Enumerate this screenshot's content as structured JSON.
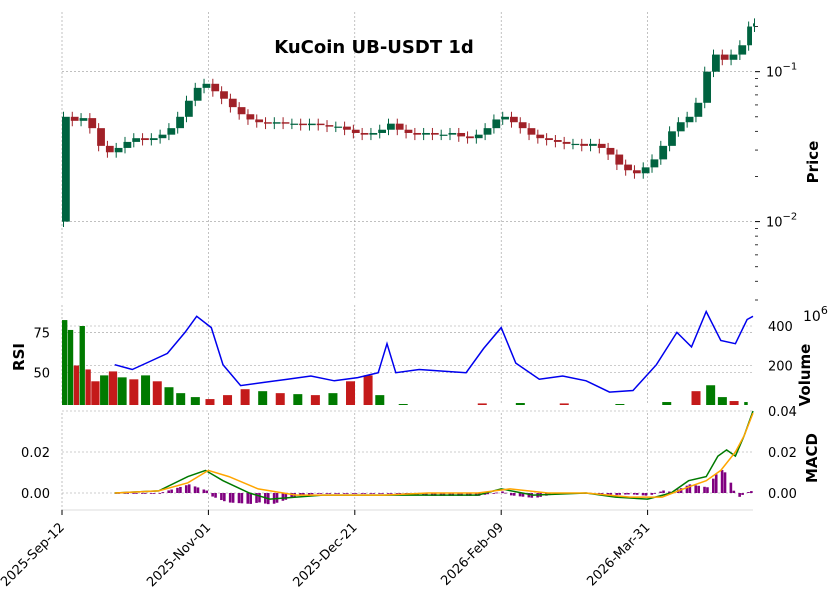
{
  "chart_data": {
    "type": "candlestick",
    "title": "KuCoin UB-USDT 1d",
    "x_tick_labels": [
      "2025-Sep-12",
      "2025-Nov-01",
      "2025-Dec-21",
      "2026-Feb-09",
      "2026-Mar-31"
    ],
    "price_panel": {
      "ylabel": "Price",
      "scale": "log",
      "ylim": [
        0.003,
        0.25
      ],
      "y_tick_labels": [
        "10^-2",
        "10^-1"
      ],
      "y_tick_values": [
        0.01,
        0.1
      ],
      "up_color": "#006340",
      "down_color": "#a02128",
      "close_series": [
        {
          "date": "2025-09-12",
          "close": 0.05
        },
        {
          "date": "2025-09-15",
          "close": 0.047
        },
        {
          "date": "2025-09-18",
          "close": 0.049
        },
        {
          "date": "2025-09-21",
          "close": 0.042
        },
        {
          "date": "2025-09-24",
          "close": 0.032
        },
        {
          "date": "2025-09-27",
          "close": 0.029
        },
        {
          "date": "2025-09-30",
          "close": 0.031
        },
        {
          "date": "2025-10-03",
          "close": 0.034
        },
        {
          "date": "2025-10-06",
          "close": 0.036
        },
        {
          "date": "2025-10-09",
          "close": 0.035
        },
        {
          "date": "2025-10-12",
          "close": 0.036
        },
        {
          "date": "2025-10-15",
          "close": 0.038
        },
        {
          "date": "2025-10-18",
          "close": 0.042
        },
        {
          "date": "2025-10-21",
          "close": 0.05
        },
        {
          "date": "2025-10-24",
          "close": 0.064
        },
        {
          "date": "2025-10-27",
          "close": 0.078
        },
        {
          "date": "2025-10-30",
          "close": 0.083
        },
        {
          "date": "2025-11-02",
          "close": 0.074
        },
        {
          "date": "2025-11-05",
          "close": 0.066
        },
        {
          "date": "2025-11-08",
          "close": 0.058
        },
        {
          "date": "2025-11-11",
          "close": 0.052
        },
        {
          "date": "2025-11-14",
          "close": 0.048
        },
        {
          "date": "2025-11-17",
          "close": 0.046
        },
        {
          "date": "2025-11-20",
          "close": 0.045
        },
        {
          "date": "2025-11-23",
          "close": 0.046
        },
        {
          "date": "2025-11-26",
          "close": 0.045
        },
        {
          "date": "2025-11-29",
          "close": 0.045
        },
        {
          "date": "2025-12-02",
          "close": 0.044
        },
        {
          "date": "2025-12-05",
          "close": 0.045
        },
        {
          "date": "2025-12-08",
          "close": 0.044
        },
        {
          "date": "2025-12-11",
          "close": 0.043
        },
        {
          "date": "2025-12-14",
          "close": 0.043
        },
        {
          "date": "2025-12-17",
          "close": 0.041
        },
        {
          "date": "2025-12-20",
          "close": 0.039
        },
        {
          "date": "2025-12-23",
          "close": 0.038
        },
        {
          "date": "2025-12-26",
          "close": 0.039
        },
        {
          "date": "2025-12-29",
          "close": 0.041
        },
        {
          "date": "2026-01-01",
          "close": 0.045
        },
        {
          "date": "2026-01-04",
          "close": 0.041
        },
        {
          "date": "2026-01-07",
          "close": 0.039
        },
        {
          "date": "2026-01-10",
          "close": 0.038
        },
        {
          "date": "2026-01-13",
          "close": 0.039
        },
        {
          "date": "2026-01-16",
          "close": 0.038
        },
        {
          "date": "2026-01-19",
          "close": 0.038
        },
        {
          "date": "2026-01-22",
          "close": 0.039
        },
        {
          "date": "2026-01-25",
          "close": 0.037
        },
        {
          "date": "2026-01-28",
          "close": 0.036
        },
        {
          "date": "2026-01-31",
          "close": 0.038
        },
        {
          "date": "2026-02-03",
          "close": 0.042
        },
        {
          "date": "2026-02-06",
          "close": 0.048
        },
        {
          "date": "2026-02-09",
          "close": 0.05
        },
        {
          "date": "2026-02-12",
          "close": 0.046
        },
        {
          "date": "2026-02-15",
          "close": 0.042
        },
        {
          "date": "2026-02-18",
          "close": 0.038
        },
        {
          "date": "2026-02-21",
          "close": 0.036
        },
        {
          "date": "2026-02-24",
          "close": 0.035
        },
        {
          "date": "2026-02-27",
          "close": 0.034
        },
        {
          "date": "2026-03-02",
          "close": 0.033
        },
        {
          "date": "2026-03-05",
          "close": 0.033
        },
        {
          "date": "2026-03-08",
          "close": 0.032
        },
        {
          "date": "2026-03-11",
          "close": 0.033
        },
        {
          "date": "2026-03-14",
          "close": 0.031
        },
        {
          "date": "2026-03-17",
          "close": 0.028
        },
        {
          "date": "2026-03-20",
          "close": 0.024
        },
        {
          "date": "2026-03-23",
          "close": 0.022
        },
        {
          "date": "2026-03-26",
          "close": 0.021
        },
        {
          "date": "2026-03-29",
          "close": 0.023
        },
        {
          "date": "2026-04-01",
          "close": 0.026
        },
        {
          "date": "2026-04-04",
          "close": 0.032
        },
        {
          "date": "2026-04-07",
          "close": 0.04
        },
        {
          "date": "2026-04-10",
          "close": 0.046
        },
        {
          "date": "2026-04-13",
          "close": 0.05
        },
        {
          "date": "2026-04-16",
          "close": 0.062
        },
        {
          "date": "2026-04-19",
          "close": 0.1
        },
        {
          "date": "2026-04-22",
          "close": 0.13
        },
        {
          "date": "2026-04-25",
          "close": 0.12
        },
        {
          "date": "2026-04-28",
          "close": 0.13
        },
        {
          "date": "2026-05-01",
          "close": 0.15
        },
        {
          "date": "2026-05-04",
          "close": 0.2
        },
        {
          "date": "2026-05-06",
          "close": 0.21
        }
      ]
    },
    "rsi_panel": {
      "ylabel": "RSI",
      "y_tick_labels": [
        "50",
        "75"
      ],
      "y_tick_values": [
        50,
        75
      ],
      "line_color": "#0000ee",
      "rsi_series": [
        {
          "date": "2025-09-30",
          "rsi": 55
        },
        {
          "date": "2025-10-06",
          "rsi": 52
        },
        {
          "date": "2025-10-12",
          "rsi": 57
        },
        {
          "date": "2025-10-18",
          "rsi": 62
        },
        {
          "date": "2025-10-24",
          "rsi": 75
        },
        {
          "date": "2025-10-28",
          "rsi": 85
        },
        {
          "date": "2025-11-02",
          "rsi": 78
        },
        {
          "date": "2025-11-06",
          "rsi": 55
        },
        {
          "date": "2025-11-12",
          "rsi": 42
        },
        {
          "date": "2025-11-20",
          "rsi": 44
        },
        {
          "date": "2025-11-28",
          "rsi": 46
        },
        {
          "date": "2025-12-06",
          "rsi": 48
        },
        {
          "date": "2025-12-14",
          "rsi": 45
        },
        {
          "date": "2025-12-22",
          "rsi": 47
        },
        {
          "date": "2025-12-29",
          "rsi": 50
        },
        {
          "date": "2026-01-01",
          "rsi": 68
        },
        {
          "date": "2026-01-04",
          "rsi": 50
        },
        {
          "date": "2026-01-12",
          "rsi": 52
        },
        {
          "date": "2026-01-20",
          "rsi": 51
        },
        {
          "date": "2026-01-28",
          "rsi": 50
        },
        {
          "date": "2026-02-03",
          "rsi": 65
        },
        {
          "date": "2026-02-09",
          "rsi": 78
        },
        {
          "date": "2026-02-14",
          "rsi": 56
        },
        {
          "date": "2026-02-22",
          "rsi": 46
        },
        {
          "date": "2026-03-02",
          "rsi": 48
        },
        {
          "date": "2026-03-10",
          "rsi": 45
        },
        {
          "date": "2026-03-18",
          "rsi": 38
        },
        {
          "date": "2026-03-26",
          "rsi": 39
        },
        {
          "date": "2026-04-03",
          "rsi": 55
        },
        {
          "date": "2026-04-10",
          "rsi": 75
        },
        {
          "date": "2026-04-15",
          "rsi": 66
        },
        {
          "date": "2026-04-20",
          "rsi": 88
        },
        {
          "date": "2026-04-25",
          "rsi": 70
        },
        {
          "date": "2026-04-30",
          "rsi": 68
        },
        {
          "date": "2026-05-04",
          "rsi": 83
        },
        {
          "date": "2026-05-06",
          "rsi": 85
        }
      ]
    },
    "volume_panel": {
      "ylabel": "Volume",
      "scale_label": "10^6",
      "y_tick_labels": [
        "200",
        "400"
      ],
      "y_tick_values": [
        200,
        400
      ],
      "up_color": "#007a00",
      "down_color": "#c41a1a",
      "volume_series": [
        {
          "date": "2025-09-12",
          "volume": 430,
          "up": true
        },
        {
          "date": "2025-09-14",
          "volume": 380,
          "up": true
        },
        {
          "date": "2025-09-16",
          "volume": 200,
          "up": false
        },
        {
          "date": "2025-09-18",
          "volume": 400,
          "up": true
        },
        {
          "date": "2025-09-20",
          "volume": 180,
          "up": false
        },
        {
          "date": "2025-09-22",
          "volume": 120,
          "up": false
        },
        {
          "date": "2025-09-25",
          "volume": 150,
          "up": true
        },
        {
          "date": "2025-09-28",
          "volume": 170,
          "up": false
        },
        {
          "date": "2025-10-01",
          "volume": 140,
          "up": true
        },
        {
          "date": "2025-10-05",
          "volume": 130,
          "up": false
        },
        {
          "date": "2025-10-09",
          "volume": 150,
          "up": true
        },
        {
          "date": "2025-10-13",
          "volume": 120,
          "up": false
        },
        {
          "date": "2025-10-17",
          "volume": 90,
          "up": true
        },
        {
          "date": "2025-10-21",
          "volume": 60,
          "up": true
        },
        {
          "date": "2025-10-26",
          "volume": 40,
          "up": true
        },
        {
          "date": "2025-10-31",
          "volume": 30,
          "up": false
        },
        {
          "date": "2025-11-06",
          "volume": 50,
          "up": false
        },
        {
          "date": "2025-11-12",
          "volume": 80,
          "up": false
        },
        {
          "date": "2025-11-18",
          "volume": 70,
          "up": true
        },
        {
          "date": "2025-11-24",
          "volume": 60,
          "up": false
        },
        {
          "date": "2025-11-30",
          "volume": 55,
          "up": true
        },
        {
          "date": "2025-12-06",
          "volume": 50,
          "up": false
        },
        {
          "date": "2025-12-12",
          "volume": 60,
          "up": true
        },
        {
          "date": "2025-12-18",
          "volume": 120,
          "up": false
        },
        {
          "date": "2025-12-24",
          "volume": 150,
          "up": false
        },
        {
          "date": "2025-12-28",
          "volume": 50,
          "up": true
        },
        {
          "date": "2026-01-05",
          "volume": 5,
          "up": true
        },
        {
          "date": "2026-02-01",
          "volume": 8,
          "up": false
        },
        {
          "date": "2026-02-14",
          "volume": 10,
          "up": true
        },
        {
          "date": "2026-03-01",
          "volume": 8,
          "up": false
        },
        {
          "date": "2026-03-20",
          "volume": 5,
          "up": true
        },
        {
          "date": "2026-04-05",
          "volume": 15,
          "up": true
        },
        {
          "date": "2026-04-15",
          "volume": 70,
          "up": false
        },
        {
          "date": "2026-04-20",
          "volume": 100,
          "up": true
        },
        {
          "date": "2026-04-24",
          "volume": 40,
          "up": true
        },
        {
          "date": "2026-04-28",
          "volume": 20,
          "up": false
        },
        {
          "date": "2026-05-03",
          "volume": 15,
          "up": true
        }
      ]
    },
    "macd_panel": {
      "ylabel": "MACD",
      "left_y_tick_labels": [
        "0.00",
        "0.02"
      ],
      "right_y_tick_labels": [
        "0.00",
        "0.02",
        "0.04"
      ],
      "y_tick_values": [
        0,
        0.02,
        0.04
      ],
      "macd_color": "#007a00",
      "signal_color": "#ffa500",
      "hist_color": "#800080",
      "macd_series": [
        {
          "date": "2025-09-30",
          "macd": 0.0
        },
        {
          "date": "2025-10-15",
          "macd": 0.001
        },
        {
          "date": "2025-10-25",
          "macd": 0.008
        },
        {
          "date": "2025-10-31",
          "macd": 0.011
        },
        {
          "date": "2025-11-06",
          "macd": 0.006
        },
        {
          "date": "2025-11-15",
          "macd": 0.0
        },
        {
          "date": "2025-11-22",
          "macd": -0.003
        },
        {
          "date": "2025-12-10",
          "macd": -0.001
        },
        {
          "date": "2025-12-31",
          "macd": -0.001
        },
        {
          "date": "2026-01-15",
          "macd": -0.001
        },
        {
          "date": "2026-02-01",
          "macd": -0.001
        },
        {
          "date": "2026-02-09",
          "macd": 0.002
        },
        {
          "date": "2026-02-20",
          "macd": -0.001
        },
        {
          "date": "2026-03-10",
          "macd": 0.0
        },
        {
          "date": "2026-03-20",
          "macd": -0.002
        },
        {
          "date": "2026-03-31",
          "macd": -0.003
        },
        {
          "date": "2026-04-08",
          "macd": 0.0
        },
        {
          "date": "2026-04-14",
          "macd": 0.006
        },
        {
          "date": "2026-04-20",
          "macd": 0.008
        },
        {
          "date": "2026-04-24",
          "macd": 0.018
        },
        {
          "date": "2026-04-27",
          "macd": 0.021
        },
        {
          "date": "2026-04-30",
          "macd": 0.018
        },
        {
          "date": "2026-05-03",
          "macd": 0.028
        },
        {
          "date": "2026-05-06",
          "macd": 0.04
        }
      ],
      "signal_series": [
        {
          "date": "2025-09-30",
          "signal": 0.0
        },
        {
          "date": "2025-10-15",
          "signal": 0.001
        },
        {
          "date": "2025-10-25",
          "signal": 0.005
        },
        {
          "date": "2025-11-01",
          "signal": 0.011
        },
        {
          "date": "2025-11-08",
          "signal": 0.008
        },
        {
          "date": "2025-11-18",
          "signal": 0.002
        },
        {
          "date": "2025-12-01",
          "signal": -0.001
        },
        {
          "date": "2025-12-31",
          "signal": -0.001
        },
        {
          "date": "2026-01-15",
          "signal": 0.0
        },
        {
          "date": "2026-02-01",
          "signal": 0.0
        },
        {
          "date": "2026-02-12",
          "signal": 0.002
        },
        {
          "date": "2026-02-25",
          "signal": 0.0
        },
        {
          "date": "2026-03-10",
          "signal": 0.0
        },
        {
          "date": "2026-03-25",
          "signal": -0.002
        },
        {
          "date": "2026-04-05",
          "signal": -0.002
        },
        {
          "date": "2026-04-14",
          "signal": 0.003
        },
        {
          "date": "2026-04-20",
          "signal": 0.006
        },
        {
          "date": "2026-04-25",
          "signal": 0.011
        },
        {
          "date": "2026-04-30",
          "signal": 0.02
        },
        {
          "date": "2026-05-03",
          "signal": 0.028
        },
        {
          "date": "2026-05-06",
          "signal": 0.039
        }
      ]
    }
  }
}
